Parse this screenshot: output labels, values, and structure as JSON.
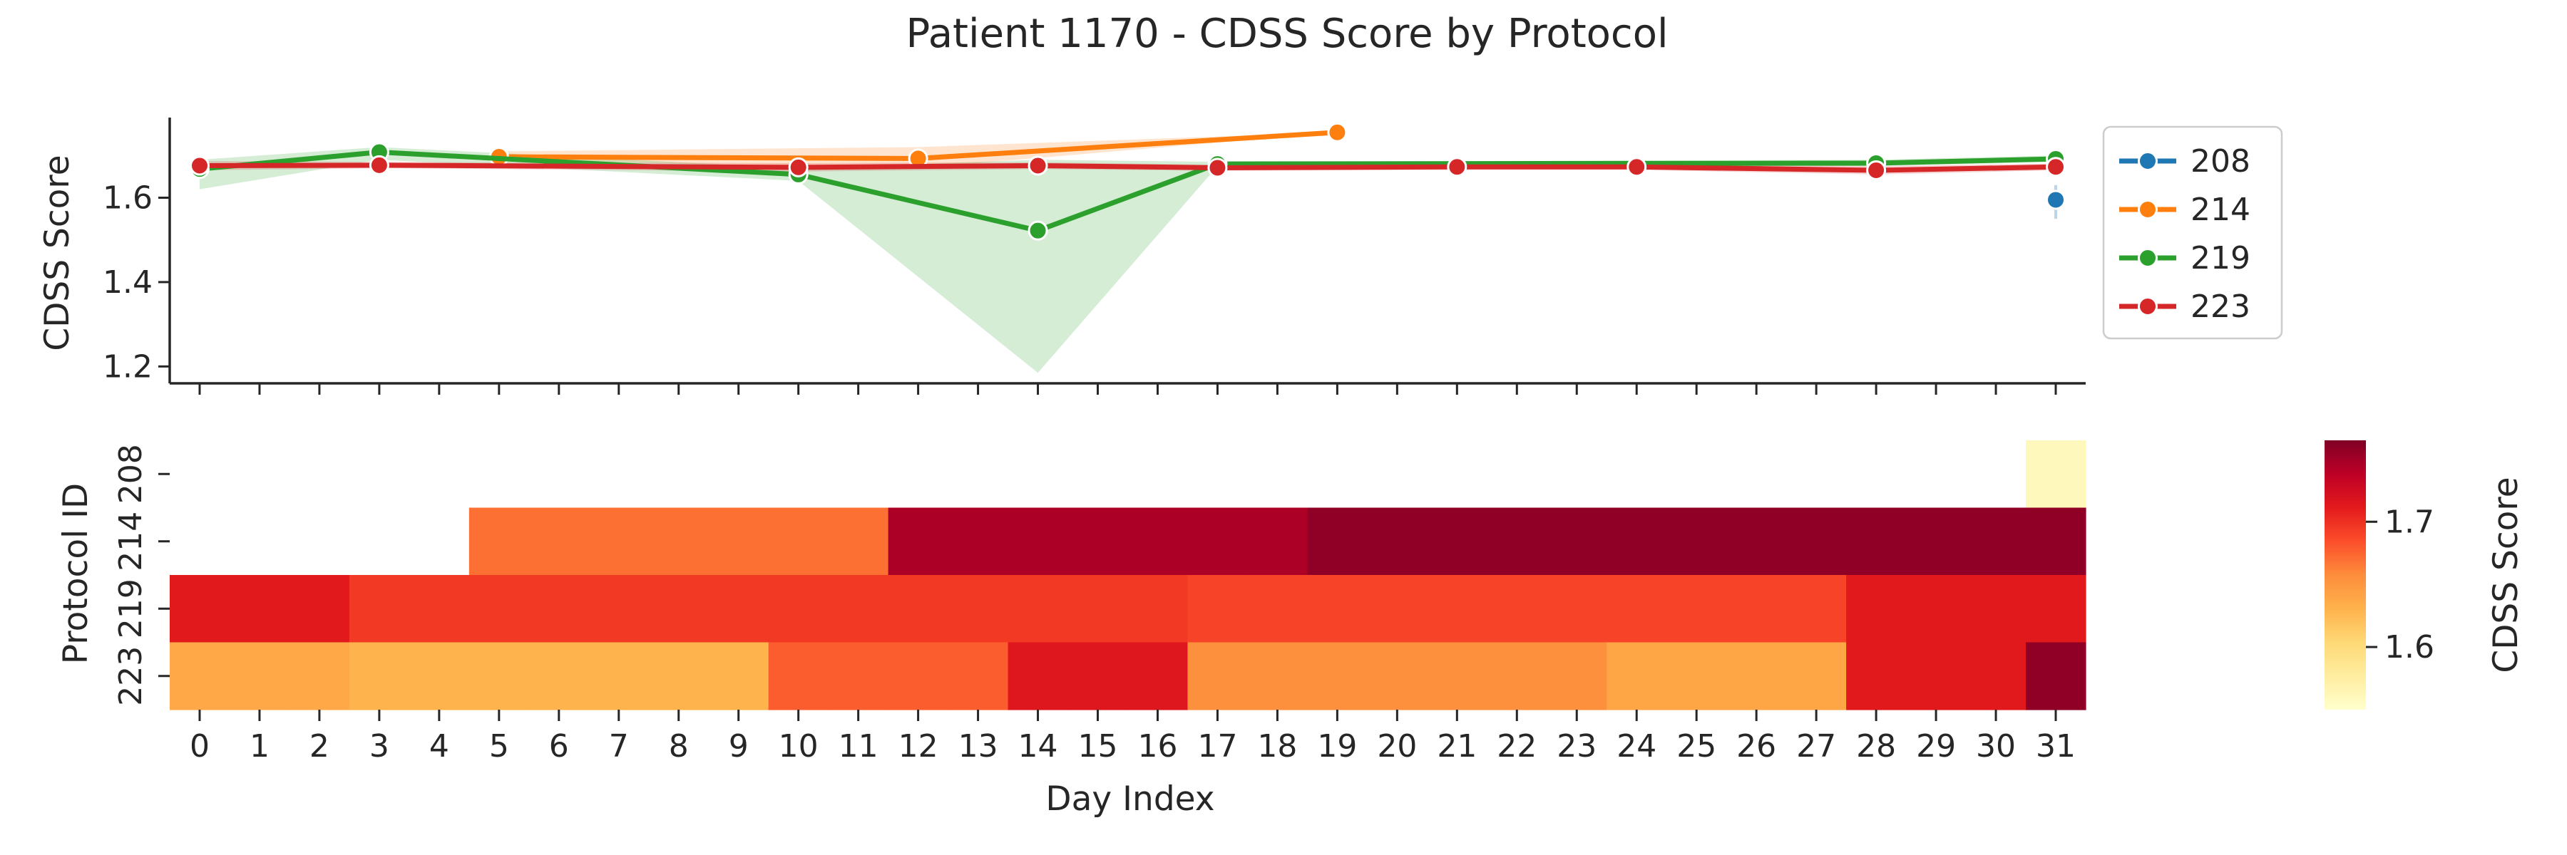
{
  "chart_data": {
    "title": "Patient 1170 - CDSS Score by Protocol",
    "line_chart": {
      "type": "line",
      "ylabel": "CDSS Score",
      "ylim": [
        1.16,
        1.79
      ],
      "yticks": [
        1.2,
        1.4,
        1.6
      ],
      "x_range": [
        -0.5,
        31.5
      ],
      "series": [
        {
          "name": "208",
          "color": "#1f77b4",
          "points": [
            {
              "x": 31,
              "y": 1.595
            }
          ],
          "band": [
            {
              "x": 31,
              "lo": 1.55,
              "hi": 1.63
            }
          ]
        },
        {
          "name": "214",
          "color": "#ff7f0e",
          "points": [
            {
              "x": 5,
              "y": 1.697
            },
            {
              "x": 12,
              "y": 1.693
            },
            {
              "x": 19,
              "y": 1.755
            }
          ],
          "band": [
            {
              "x": 5,
              "lo": 1.69,
              "hi": 1.71
            },
            {
              "x": 12,
              "lo": 1.67,
              "hi": 1.72
            },
            {
              "x": 19,
              "lo": 1.755,
              "hi": 1.755
            }
          ]
        },
        {
          "name": "219",
          "color": "#2ca02c",
          "points": [
            {
              "x": 0,
              "y": 1.668
            },
            {
              "x": 3,
              "y": 1.708
            },
            {
              "x": 10,
              "y": 1.655
            },
            {
              "x": 14,
              "y": 1.522
            },
            {
              "x": 17,
              "y": 1.68
            },
            {
              "x": 28,
              "y": 1.682
            },
            {
              "x": 31,
              "y": 1.692
            }
          ],
          "band": [
            {
              "x": 0,
              "lo": 1.62,
              "hi": 1.69
            },
            {
              "x": 3,
              "lo": 1.69,
              "hi": 1.72
            },
            {
              "x": 10,
              "lo": 1.64,
              "hi": 1.67
            },
            {
              "x": 14,
              "lo": 1.185,
              "hi": 1.69
            },
            {
              "x": 17,
              "lo": 1.675,
              "hi": 1.685
            },
            {
              "x": 28,
              "lo": 1.675,
              "hi": 1.69
            },
            {
              "x": 31,
              "lo": 1.685,
              "hi": 1.7
            }
          ]
        },
        {
          "name": "223",
          "color": "#d62728",
          "points": [
            {
              "x": 0,
              "y": 1.676
            },
            {
              "x": 3,
              "y": 1.677
            },
            {
              "x": 10,
              "y": 1.672
            },
            {
              "x": 14,
              "y": 1.676
            },
            {
              "x": 17,
              "y": 1.671
            },
            {
              "x": 21,
              "y": 1.673
            },
            {
              "x": 24,
              "y": 1.673
            },
            {
              "x": 28,
              "y": 1.665
            },
            {
              "x": 31,
              "y": 1.673
            }
          ],
          "band": [
            {
              "x": 0,
              "lo": 1.665,
              "hi": 1.687
            },
            {
              "x": 3,
              "lo": 1.67,
              "hi": 1.685
            },
            {
              "x": 10,
              "lo": 1.662,
              "hi": 1.682
            },
            {
              "x": 14,
              "lo": 1.668,
              "hi": 1.684
            },
            {
              "x": 17,
              "lo": 1.664,
              "hi": 1.678
            },
            {
              "x": 21,
              "lo": 1.666,
              "hi": 1.68
            },
            {
              "x": 24,
              "lo": 1.666,
              "hi": 1.68
            },
            {
              "x": 28,
              "lo": 1.655,
              "hi": 1.675
            },
            {
              "x": 31,
              "lo": 1.665,
              "hi": 1.681
            }
          ]
        }
      ],
      "legend": {
        "placement": "outside-right",
        "entries": [
          "208",
          "214",
          "219",
          "223"
        ]
      }
    },
    "heatmap": {
      "type": "heatmap",
      "xlabel": "Day Index",
      "ylabel": "Protocol ID",
      "x_categories": [
        "0",
        "1",
        "2",
        "3",
        "4",
        "5",
        "6",
        "7",
        "8",
        "9",
        "10",
        "11",
        "12",
        "13",
        "14",
        "15",
        "16",
        "17",
        "18",
        "19",
        "20",
        "21",
        "22",
        "23",
        "24",
        "25",
        "26",
        "27",
        "28",
        "29",
        "30",
        "31"
      ],
      "y_categories": [
        "208",
        "214",
        "219",
        "223"
      ],
      "rows": [
        {
          "protocol": "208",
          "values": [
            null,
            null,
            null,
            null,
            null,
            null,
            null,
            null,
            null,
            null,
            null,
            null,
            null,
            null,
            null,
            null,
            null,
            null,
            null,
            null,
            null,
            null,
            null,
            null,
            null,
            null,
            null,
            null,
            null,
            null,
            null,
            1.56
          ]
        },
        {
          "protocol": "214",
          "values": [
            null,
            null,
            null,
            null,
            null,
            1.67,
            1.67,
            1.67,
            1.67,
            1.67,
            1.67,
            1.67,
            1.745,
            1.745,
            1.745,
            1.745,
            1.745,
            1.745,
            1.745,
            1.758,
            1.758,
            1.758,
            1.758,
            1.758,
            1.758,
            1.758,
            1.758,
            1.758,
            1.758,
            1.758,
            1.758,
            1.758
          ]
        },
        {
          "protocol": "219",
          "values": [
            1.712,
            1.712,
            1.712,
            1.695,
            1.695,
            1.695,
            1.695,
            1.695,
            1.695,
            1.695,
            1.695,
            1.695,
            1.695,
            1.695,
            1.695,
            1.695,
            1.695,
            1.69,
            1.69,
            1.69,
            1.69,
            1.69,
            1.69,
            1.69,
            1.69,
            1.69,
            1.69,
            1.69,
            1.712,
            1.712,
            1.712,
            1.712
          ]
        },
        {
          "protocol": "223",
          "values": [
            1.638,
            1.638,
            1.638,
            1.63,
            1.63,
            1.63,
            1.63,
            1.63,
            1.63,
            1.63,
            1.678,
            1.678,
            1.678,
            1.678,
            1.715,
            1.715,
            1.715,
            1.655,
            1.655,
            1.655,
            1.655,
            1.655,
            1.655,
            1.655,
            1.64,
            1.64,
            1.64,
            1.64,
            1.712,
            1.712,
            1.712,
            1.758
          ]
        }
      ]
    },
    "colorbar": {
      "label": "CDSS Score",
      "colormap": "YlOrRd",
      "range": [
        1.55,
        1.765
      ],
      "ticks": [
        1.6,
        1.7
      ]
    }
  }
}
